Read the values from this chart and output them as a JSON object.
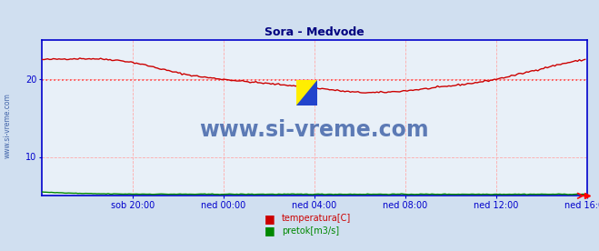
{
  "title": "Sora - Medvode",
  "title_color": "#000080",
  "bg_color": "#d0dff0",
  "plot_bg_color": "#e8f0f8",
  "grid_color": "#ffaaaa",
  "axis_color": "#0000cc",
  "watermark_text": "www.si-vreme.com",
  "watermark_color": "#4466aa",
  "left_label": "www.si-vreme.com",
  "left_label_color": "#4466aa",
  "xlabels": [
    "sob 20:00",
    "ned 00:00",
    "ned 04:00",
    "ned 08:00",
    "ned 12:00",
    "ned 16:00"
  ],
  "ylabel_values": [
    10,
    20
  ],
  "ylim": [
    5,
    25
  ],
  "xlim": [
    0,
    288
  ],
  "hline_value": 19.9,
  "hline_color": "#ff4444",
  "temp_color": "#cc0000",
  "flow_color": "#008800",
  "legend_items": [
    {
      "label": "temperatura[C]",
      "color": "#cc0000"
    },
    {
      "label": "pretok[m3/s]",
      "color": "#008800"
    }
  ],
  "border_color": "#0000cc",
  "n_points": 288,
  "xtick_positions": [
    48,
    96,
    144,
    192,
    240,
    288
  ]
}
